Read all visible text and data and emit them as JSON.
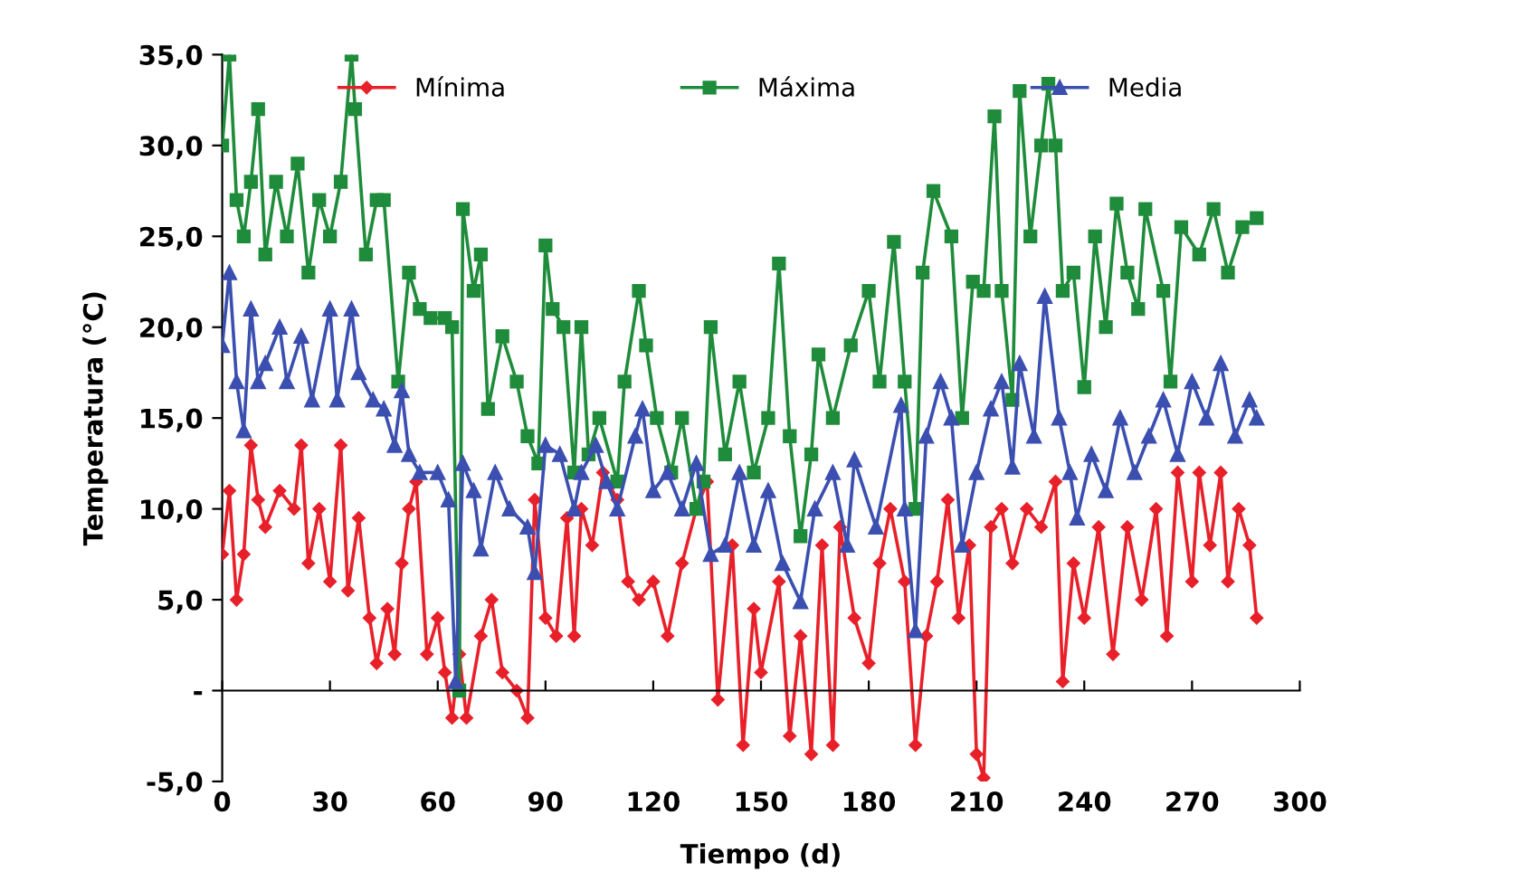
{
  "chart_data": {
    "type": "line",
    "xlabel": "Tiempo (d)",
    "ylabel": "Temperatura (°C)",
    "xlim": [
      0,
      300
    ],
    "xticks": [
      0,
      30,
      60,
      90,
      120,
      150,
      180,
      210,
      240,
      270,
      300
    ],
    "ylim": [
      -5,
      35
    ],
    "yticks": [
      {
        "value": -5,
        "label": "-5,0"
      },
      {
        "value": 0,
        "label": "-"
      },
      {
        "value": 5,
        "label": "5,0"
      },
      {
        "value": 10,
        "label": "10,0"
      },
      {
        "value": 15,
        "label": "15,0"
      },
      {
        "value": 20,
        "label": "20,0"
      },
      {
        "value": 25,
        "label": "25,0"
      },
      {
        "value": 30,
        "label": "30,0"
      },
      {
        "value": 35,
        "label": "35,0"
      }
    ],
    "legend": "top",
    "line_style": "solid",
    "series": [
      {
        "name": "Mínima",
        "color": "#e8202a",
        "marker": "diamond",
        "x": [
          0,
          2,
          4,
          6,
          8,
          10,
          12,
          16,
          20,
          22,
          24,
          27,
          30,
          33,
          35,
          38,
          41,
          43,
          46,
          48,
          50,
          52,
          54,
          57,
          60,
          62,
          64,
          66,
          68,
          72,
          75,
          78,
          82,
          85,
          87,
          90,
          93,
          96,
          98,
          100,
          103,
          106,
          110,
          113,
          116,
          120,
          124,
          128,
          132,
          135,
          138,
          142,
          145,
          148,
          150,
          155,
          158,
          161,
          164,
          167,
          170,
          172,
          176,
          180,
          183,
          186,
          190,
          193,
          196,
          199,
          202,
          205,
          208,
          210,
          212,
          214,
          217,
          220,
          224,
          228,
          232,
          234,
          237,
          240,
          244,
          248,
          252,
          256,
          260,
          263,
          266,
          270,
          272,
          275,
          278,
          280,
          283,
          286,
          288
        ],
        "values": [
          7.5,
          11,
          5,
          7.5,
          13.5,
          10.5,
          9,
          11,
          10,
          13.5,
          7,
          10,
          6,
          13.5,
          5.5,
          9.5,
          4,
          1.5,
          4.5,
          2,
          7,
          10,
          11.5,
          2,
          4,
          1,
          -1.5,
          2,
          -1.5,
          3,
          5,
          1,
          0,
          -1.5,
          10.5,
          4,
          3,
          9.5,
          3,
          10,
          8,
          12,
          10.5,
          6,
          5,
          6,
          3,
          7,
          10,
          11.5,
          -0.5,
          8,
          -3,
          4.5,
          1,
          6,
          -2.5,
          3,
          -3.5,
          8,
          -3,
          9,
          4,
          1.5,
          7,
          10,
          6,
          -3,
          3,
          6,
          10.5,
          4,
          8,
          -3.5,
          -4.8,
          9,
          10,
          7,
          10,
          9,
          11.5,
          0.5,
          7,
          4,
          9,
          2,
          9,
          5,
          10,
          3,
          12,
          6,
          12,
          8,
          12,
          6,
          10,
          8,
          4
        ]
      },
      {
        "name": "Máxima",
        "color": "#1e8c3a",
        "marker": "square",
        "x": [
          0,
          2,
          4,
          6,
          8,
          10,
          12,
          15,
          18,
          21,
          24,
          27,
          30,
          33,
          36,
          37,
          40,
          43,
          45,
          49,
          52,
          55,
          58,
          62,
          64,
          66,
          67,
          70,
          72,
          74,
          78,
          82,
          85,
          88,
          90,
          92,
          95,
          98,
          100,
          102,
          105,
          110,
          112,
          116,
          118,
          121,
          125,
          128,
          132,
          134,
          136,
          140,
          144,
          148,
          152,
          155,
          158,
          161,
          164,
          166,
          170,
          175,
          180,
          183,
          187,
          190,
          193,
          195,
          198,
          203,
          206,
          209,
          212,
          215,
          217,
          220,
          222,
          225,
          228,
          230,
          232,
          234,
          237,
          240,
          243,
          246,
          249,
          252,
          255,
          257,
          262,
          264,
          267,
          272,
          276,
          280,
          284,
          288
        ],
        "values": [
          30,
          35,
          27,
          25,
          28,
          32,
          24,
          28,
          25,
          29,
          23,
          27,
          25,
          28,
          35,
          32,
          24,
          27,
          27,
          17,
          23,
          21,
          20.5,
          20.5,
          20,
          0,
          26.5,
          22,
          24,
          15.5,
          19.5,
          17,
          14,
          12.5,
          24.5,
          21,
          20,
          12,
          20,
          13,
          15,
          11.5,
          17,
          22,
          19,
          15,
          12,
          15,
          10,
          11.5,
          20,
          13,
          17,
          12,
          15,
          23.5,
          14,
          8.5,
          13,
          18.5,
          15,
          19,
          22,
          17,
          24.7,
          17,
          10,
          23,
          27.5,
          25,
          15,
          22.5,
          22,
          31.6,
          22,
          16,
          33,
          25,
          30,
          33.4,
          30,
          22,
          23,
          16.7,
          25,
          20,
          26.8,
          23,
          21,
          26.5,
          22,
          17,
          25.5,
          24,
          26.5,
          23,
          25.5,
          26
        ]
      },
      {
        "name": "Media",
        "color": "#3b4fb0",
        "marker": "triangle",
        "x": [
          0,
          2,
          4,
          6,
          8,
          10,
          12,
          16,
          18,
          22,
          25,
          30,
          32,
          36,
          38,
          42,
          45,
          48,
          50,
          52,
          55,
          60,
          63,
          65,
          67,
          70,
          72,
          76,
          80,
          85,
          87,
          90,
          94,
          98,
          100,
          104,
          107,
          110,
          115,
          117,
          120,
          124,
          128,
          132,
          136,
          140,
          144,
          148,
          152,
          156,
          161,
          165,
          170,
          174,
          176,
          182,
          189,
          190,
          193,
          196,
          200,
          203,
          206,
          210,
          214,
          217,
          220,
          222,
          226,
          229,
          233,
          236,
          238,
          242,
          246,
          250,
          254,
          258,
          262,
          266,
          270,
          274,
          278,
          282,
          286,
          288
        ],
        "values": [
          19,
          23,
          17,
          14.3,
          21,
          17,
          18,
          20,
          17,
          19.5,
          16,
          21,
          16,
          21,
          17.5,
          16,
          15.5,
          13.5,
          16.5,
          13,
          12,
          12,
          10.5,
          0.5,
          12.5,
          11,
          7.8,
          12,
          10,
          9,
          6.5,
          13.5,
          13,
          10,
          12,
          13.5,
          11.5,
          10,
          14,
          15.5,
          11,
          12,
          10,
          12.5,
          7.5,
          8,
          12,
          8,
          11,
          7,
          4.9,
          10,
          12,
          8,
          12.7,
          9,
          15.7,
          10,
          3.3,
          14,
          17,
          15,
          8,
          12,
          15.5,
          17,
          12.3,
          18,
          14,
          21.7,
          15,
          12,
          9.5,
          13,
          11,
          15,
          12,
          14,
          16,
          13,
          17,
          15,
          18,
          14,
          16,
          15
        ]
      }
    ]
  }
}
